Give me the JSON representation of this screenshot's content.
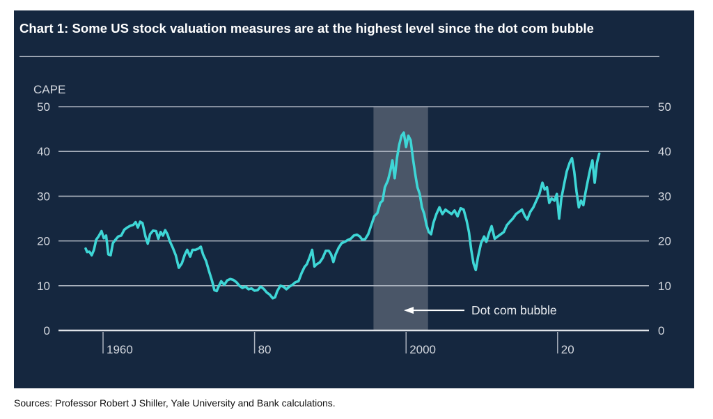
{
  "chart_data": {
    "type": "line",
    "title": "Chart 1: Some US stock valuation measures are at the highest level since the dot com bubble",
    "ylabel": "CAPE",
    "xlabel": "",
    "ylim": [
      0,
      50
    ],
    "xlim": [
      1954.2,
      2031.0
    ],
    "y_ticks": [
      0,
      10,
      20,
      30,
      40,
      50
    ],
    "y_tick_labels": [
      "0",
      "10",
      "20",
      "30",
      "40",
      "50"
    ],
    "x_ticks": [
      1960,
      1980,
      2000,
      2020
    ],
    "x_tick_labels": [
      "1960",
      "80",
      "2000",
      "20"
    ],
    "grid": true,
    "y_axis_both_sides": true,
    "line_color": "#3ed6d6",
    "shaded_region": {
      "label": "Dot com bubble",
      "x_start": 1995.7,
      "x_end": 2002.9,
      "color": "#4a5668"
    },
    "annotation": {
      "text": "Dot com bubble",
      "arrow": "left",
      "y": 4.5
    },
    "series": [
      {
        "name": "CAPE",
        "points": [
          [
            1957.7,
            18.3
          ],
          [
            1957.9,
            17.5
          ],
          [
            1958.2,
            17.6
          ],
          [
            1958.5,
            16.8
          ],
          [
            1958.8,
            18.0
          ],
          [
            1959.1,
            20.3
          ],
          [
            1959.4,
            21.0
          ],
          [
            1959.8,
            22.2
          ],
          [
            1960.1,
            20.6
          ],
          [
            1960.4,
            21.2
          ],
          [
            1960.7,
            17.0
          ],
          [
            1961.0,
            16.8
          ],
          [
            1961.3,
            19.5
          ],
          [
            1961.6,
            20.2
          ],
          [
            1962.0,
            21.0
          ],
          [
            1962.4,
            21.2
          ],
          [
            1962.8,
            22.5
          ],
          [
            1963.2,
            23.0
          ],
          [
            1963.6,
            23.4
          ],
          [
            1964.0,
            23.6
          ],
          [
            1964.3,
            24.2
          ],
          [
            1964.6,
            23.0
          ],
          [
            1964.9,
            24.3
          ],
          [
            1965.2,
            24.0
          ],
          [
            1965.6,
            21.0
          ],
          [
            1965.9,
            19.4
          ],
          [
            1966.2,
            21.5
          ],
          [
            1966.6,
            22.3
          ],
          [
            1967.0,
            22.2
          ],
          [
            1967.3,
            20.5
          ],
          [
            1967.6,
            22.0
          ],
          [
            1967.9,
            21.2
          ],
          [
            1968.2,
            22.4
          ],
          [
            1968.5,
            21.5
          ],
          [
            1968.8,
            20.0
          ],
          [
            1969.2,
            18.5
          ],
          [
            1969.6,
            16.8
          ],
          [
            1970.0,
            14.0
          ],
          [
            1970.4,
            15.0
          ],
          [
            1970.8,
            17.0
          ],
          [
            1971.1,
            18.0
          ],
          [
            1971.5,
            16.5
          ],
          [
            1971.8,
            18.0
          ],
          [
            1972.2,
            18.0
          ],
          [
            1972.6,
            18.3
          ],
          [
            1972.9,
            18.7
          ],
          [
            1973.2,
            17.0
          ],
          [
            1973.6,
            15.5
          ],
          [
            1974.0,
            13.2
          ],
          [
            1974.4,
            11.0
          ],
          [
            1974.7,
            9.0
          ],
          [
            1975.0,
            8.8
          ],
          [
            1975.3,
            10.0
          ],
          [
            1975.6,
            11.0
          ],
          [
            1976.0,
            10.2
          ],
          [
            1976.4,
            11.2
          ],
          [
            1976.8,
            11.5
          ],
          [
            1977.2,
            11.3
          ],
          [
            1977.6,
            10.8
          ],
          [
            1978.0,
            10.0
          ],
          [
            1978.4,
            9.5
          ],
          [
            1978.8,
            9.8
          ],
          [
            1979.2,
            9.2
          ],
          [
            1979.6,
            9.4
          ],
          [
            1980.0,
            8.9
          ],
          [
            1980.4,
            9.0
          ],
          [
            1980.8,
            9.8
          ],
          [
            1981.2,
            9.3
          ],
          [
            1981.6,
            8.5
          ],
          [
            1982.0,
            8.0
          ],
          [
            1982.4,
            7.2
          ],
          [
            1982.7,
            7.4
          ],
          [
            1983.0,
            8.8
          ],
          [
            1983.4,
            10.0
          ],
          [
            1983.8,
            9.8
          ],
          [
            1984.2,
            9.2
          ],
          [
            1984.6,
            9.8
          ],
          [
            1985.0,
            10.2
          ],
          [
            1985.4,
            10.8
          ],
          [
            1985.8,
            11.0
          ],
          [
            1986.2,
            12.8
          ],
          [
            1986.6,
            14.2
          ],
          [
            1986.9,
            14.8
          ],
          [
            1987.3,
            16.5
          ],
          [
            1987.6,
            18.0
          ],
          [
            1987.9,
            14.3
          ],
          [
            1988.2,
            14.8
          ],
          [
            1988.6,
            15.2
          ],
          [
            1989.0,
            16.2
          ],
          [
            1989.4,
            17.8
          ],
          [
            1989.8,
            17.8
          ],
          [
            1990.1,
            17.0
          ],
          [
            1990.4,
            15.3
          ],
          [
            1990.7,
            17.0
          ],
          [
            1991.1,
            18.5
          ],
          [
            1991.5,
            19.5
          ],
          [
            1991.9,
            19.8
          ],
          [
            1992.3,
            20.2
          ],
          [
            1992.7,
            20.5
          ],
          [
            1993.1,
            21.2
          ],
          [
            1993.5,
            21.4
          ],
          [
            1993.9,
            21.0
          ],
          [
            1994.2,
            20.3
          ],
          [
            1994.6,
            20.4
          ],
          [
            1995.0,
            21.5
          ],
          [
            1995.4,
            23.5
          ],
          [
            1995.8,
            25.5
          ],
          [
            1996.2,
            26.2
          ],
          [
            1996.6,
            28.5
          ],
          [
            1996.9,
            29.0
          ],
          [
            1997.2,
            32.0
          ],
          [
            1997.6,
            33.5
          ],
          [
            1997.9,
            35.5
          ],
          [
            1998.2,
            38.0
          ],
          [
            1998.5,
            34.0
          ],
          [
            1998.8,
            38.5
          ],
          [
            1999.1,
            41.5
          ],
          [
            1999.4,
            43.5
          ],
          [
            1999.7,
            44.2
          ],
          [
            2000.0,
            41.0
          ],
          [
            2000.3,
            43.5
          ],
          [
            2000.6,
            42.5
          ],
          [
            2000.9,
            38.5
          ],
          [
            2001.2,
            35.0
          ],
          [
            2001.5,
            32.0
          ],
          [
            2001.8,
            30.5
          ],
          [
            2002.1,
            27.5
          ],
          [
            2002.4,
            26.0
          ],
          [
            2002.7,
            23.5
          ],
          [
            2003.0,
            22.0
          ],
          [
            2003.3,
            21.5
          ],
          [
            2003.6,
            24.0
          ],
          [
            2004.0,
            26.0
          ],
          [
            2004.4,
            27.5
          ],
          [
            2004.8,
            26.0
          ],
          [
            2005.2,
            27.0
          ],
          [
            2005.6,
            26.5
          ],
          [
            2006.0,
            26.0
          ],
          [
            2006.4,
            26.8
          ],
          [
            2006.8,
            25.5
          ],
          [
            2007.2,
            27.3
          ],
          [
            2007.6,
            27.0
          ],
          [
            2008.0,
            24.5
          ],
          [
            2008.3,
            22.0
          ],
          [
            2008.6,
            18.0
          ],
          [
            2008.9,
            15.0
          ],
          [
            2009.2,
            13.5
          ],
          [
            2009.5,
            16.5
          ],
          [
            2009.9,
            19.5
          ],
          [
            2010.3,
            21.0
          ],
          [
            2010.6,
            19.8
          ],
          [
            2011.0,
            22.0
          ],
          [
            2011.3,
            23.3
          ],
          [
            2011.7,
            20.5
          ],
          [
            2012.1,
            21.0
          ],
          [
            2012.5,
            21.5
          ],
          [
            2012.9,
            22.0
          ],
          [
            2013.3,
            23.5
          ],
          [
            2013.7,
            24.3
          ],
          [
            2014.1,
            25.0
          ],
          [
            2014.5,
            26.0
          ],
          [
            2014.9,
            26.5
          ],
          [
            2015.3,
            27.0
          ],
          [
            2015.7,
            25.5
          ],
          [
            2016.0,
            24.8
          ],
          [
            2016.4,
            26.5
          ],
          [
            2016.8,
            27.5
          ],
          [
            2017.2,
            29.0
          ],
          [
            2017.6,
            30.5
          ],
          [
            2018.0,
            33.0
          ],
          [
            2018.3,
            31.5
          ],
          [
            2018.6,
            32.0
          ],
          [
            2018.9,
            28.5
          ],
          [
            2019.2,
            29.5
          ],
          [
            2019.6,
            29.0
          ],
          [
            2019.9,
            30.5
          ],
          [
            2020.2,
            25.0
          ],
          [
            2020.5,
            29.5
          ],
          [
            2020.9,
            33.0
          ],
          [
            2021.2,
            35.5
          ],
          [
            2021.6,
            37.5
          ],
          [
            2021.9,
            38.5
          ],
          [
            2022.2,
            35.5
          ],
          [
            2022.5,
            31.0
          ],
          [
            2022.8,
            27.5
          ],
          [
            2023.1,
            29.0
          ],
          [
            2023.4,
            28.0
          ],
          [
            2023.7,
            31.0
          ],
          [
            2024.0,
            33.5
          ],
          [
            2024.3,
            36.0
          ],
          [
            2024.6,
            38.0
          ],
          [
            2024.9,
            33.0
          ],
          [
            2025.2,
            37.5
          ],
          [
            2025.5,
            39.5
          ]
        ]
      }
    ]
  },
  "footer": {
    "sources": "Sources: Professor Robert J Shiller, Yale University and Bank calculations."
  }
}
